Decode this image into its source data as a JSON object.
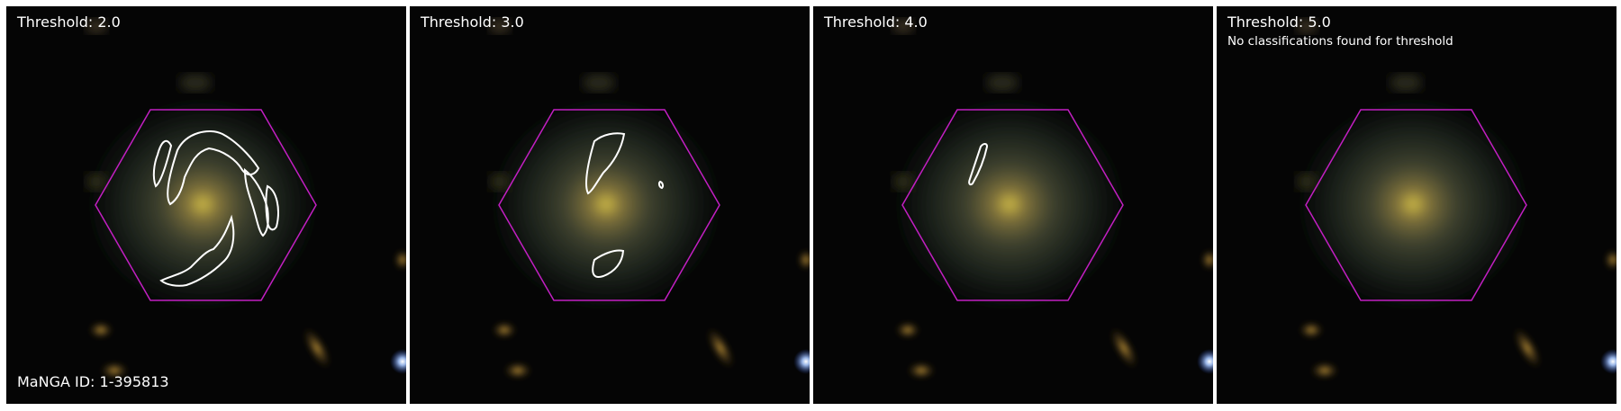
{
  "manga_id_label": "MaNGA ID: 1-395813",
  "colors": {
    "hexagon": "#c21fc2",
    "contour": "#ffffff",
    "background": "#050505"
  },
  "panels": [
    {
      "title": "Threshold: 2.0",
      "note": ""
    },
    {
      "title": "Threshold: 3.0",
      "note": ""
    },
    {
      "title": "Threshold: 4.0",
      "note": ""
    },
    {
      "title": "Threshold: 5.0",
      "note": "No classifications found for threshold"
    }
  ]
}
